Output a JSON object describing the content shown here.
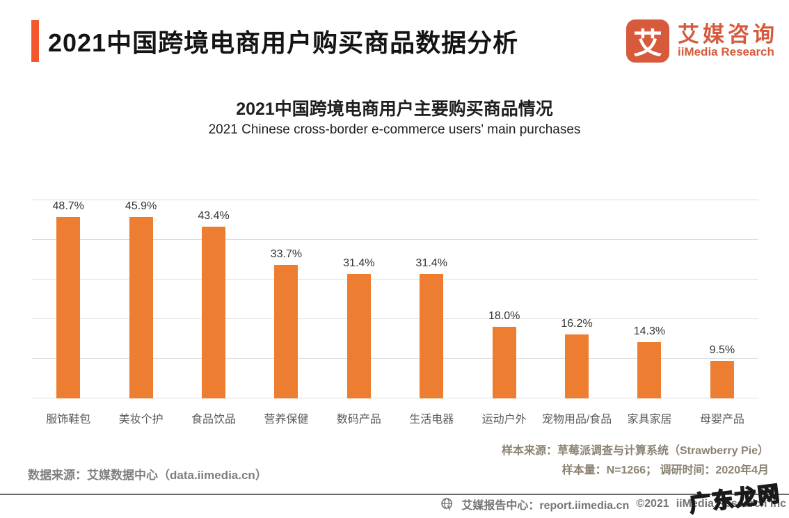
{
  "header": {
    "title": "2021中国跨境电商用户购买商品数据分析",
    "logo": {
      "glyph": "艾",
      "name_cn": "艾媒咨询",
      "name_en": "iiMedia Research"
    }
  },
  "palette": {
    "accent": "#F4572E",
    "logo_orange": "#D75A3C",
    "bar_orange": "#ED7D31",
    "gridline_gray": "#DCDCDC"
  },
  "chart_data": {
    "type": "bar",
    "title": "2021中国跨境电商用户主要购买商品情况",
    "subtitle": "2021 Chinese cross-border e-commerce users' main purchases",
    "categories": [
      "服饰鞋包",
      "美妆个护",
      "食品饮品",
      "营养保健",
      "数码产品",
      "生活电器",
      "运动户外",
      "宠物用品/食品",
      "家具家居",
      "母婴产品"
    ],
    "values": [
      48.7,
      45.9,
      43.4,
      33.7,
      31.4,
      31.4,
      18.0,
      16.2,
      14.3,
      9.5
    ],
    "value_labels": [
      "48.7%",
      "45.9%",
      "43.4%",
      "33.7%",
      "31.4%",
      "31.4%",
      "18.0%",
      "16.2%",
      "14.3%",
      "9.5%"
    ],
    "xlabel": "",
    "ylabel": "",
    "ylim": [
      0,
      50
    ],
    "grid_interval": 10,
    "grid": "horizontal",
    "legend": "none",
    "bar_color": "#ED7D31",
    "gridline_color": "#DCDCDC"
  },
  "footnotes": {
    "sample_source": "样本来源：草莓派调查与计算系统（Strawberry Pie）",
    "sample_info": "样本量：N=1266；  调研时间：2020年4月",
    "data_source": "数据来源：艾媒数据中心（data.iimedia.cn）"
  },
  "footer": {
    "icon": "globe-cursor-icon",
    "report_center": "艾媒报告中心：report.iimedia.cn",
    "copyright": "©2021",
    "company": "iiMedia Research  Inc"
  },
  "watermark": "广东龙网"
}
